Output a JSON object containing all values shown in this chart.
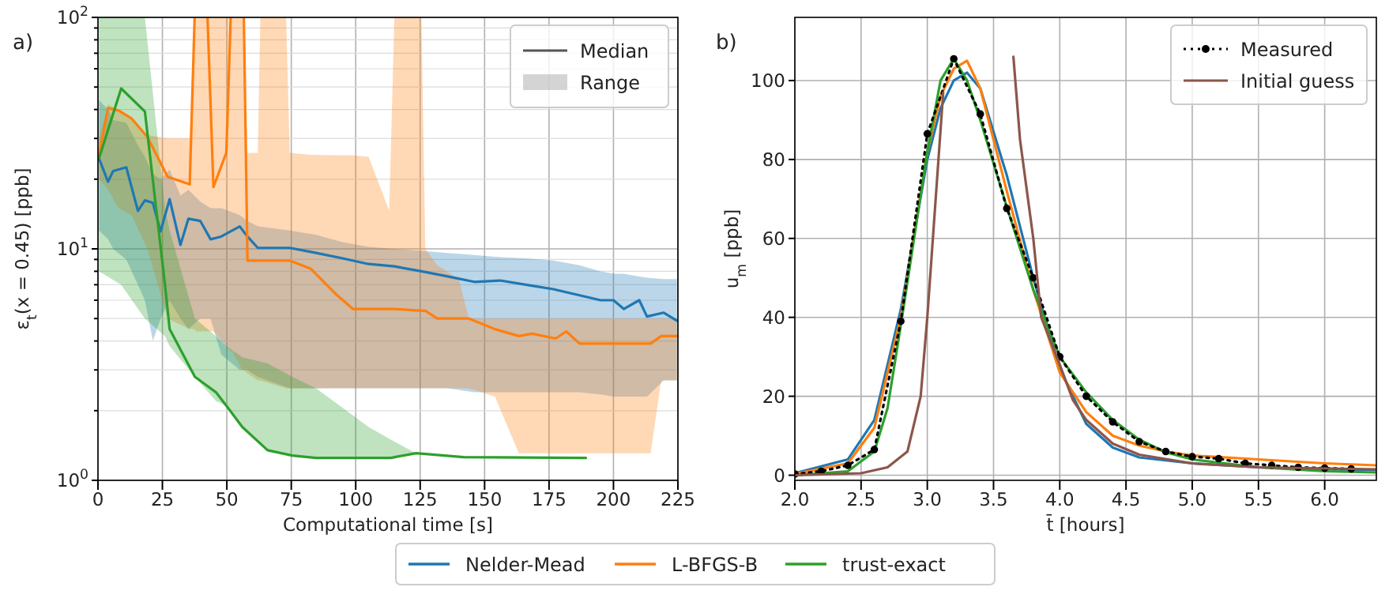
{
  "chart_data": [
    {
      "type": "line",
      "xlabel": "Computational time [s]",
      "ylabel": "ε$_{t}$(x = 0.45) [ppb]",
      "log": "y",
      "grid": true,
      "legend": "bottom",
      "annotations": [
        "a)",
        "Median",
        "Range"
      ],
      "xlim": [
        0,
        225
      ],
      "xticks": [
        0,
        25,
        50,
        75,
        100,
        125,
        150,
        175,
        200,
        225
      ],
      "ylim": [
        1,
        100
      ],
      "yticks": [
        {
          "value": 1,
          "label": "10$^{0}$"
        },
        {
          "value": 2,
          "label": null
        },
        {
          "value": 3,
          "label": null
        },
        {
          "value": 4,
          "label": null
        },
        {
          "value": 5,
          "label": null
        },
        {
          "value": 6,
          "label": null
        },
        {
          "value": 7,
          "label": null
        },
        {
          "value": 8,
          "label": null
        },
        {
          "value": 9,
          "label": null
        },
        {
          "value": 10,
          "label": "10$^{1}$"
        },
        {
          "value": 20,
          "label": null
        },
        {
          "value": 30,
          "label": null
        },
        {
          "value": 40,
          "label": null
        },
        {
          "value": 50,
          "label": null
        },
        {
          "value": 60,
          "label": null
        },
        {
          "value": 70,
          "label": null
        },
        {
          "value": 80,
          "label": null
        },
        {
          "value": 90,
          "label": null
        },
        {
          "value": 100,
          "label": "10$^{2}$"
        }
      ],
      "series": [
        {
          "name": "Nelder-Mead",
          "color": "#1f77b4",
          "x": [
            0.4,
            3.9,
            5.9,
            11,
            15.5,
            18.2,
            21.3,
            24.3,
            27.8,
            32,
            35.1,
            39.7,
            43.7,
            47.8,
            55,
            58,
            62,
            74.4,
            84.6,
            94.9,
            105,
            115,
            125.5,
            135.7,
            146,
            156,
            166,
            176.6,
            186.8,
            195,
            200,
            204,
            210,
            213,
            219.5,
            224.6
          ],
          "values": [
            24.6,
            19.5,
            21.7,
            22.5,
            14.6,
            16.2,
            15.8,
            11.9,
            16.4,
            10.4,
            13.5,
            13.2,
            11,
            11.3,
            12.5,
            11.3,
            10.1,
            10.1,
            9.6,
            9.1,
            8.6,
            8.4,
            8.0,
            7.6,
            7.2,
            7.3,
            7.0,
            6.7,
            6.3,
            6.0,
            6.0,
            5.5,
            6.0,
            5.1,
            5.3,
            4.9
          ],
          "upper": [
            44,
            40,
            36,
            35,
            28,
            25,
            21,
            20,
            22,
            17,
            18,
            16,
            15,
            15,
            14,
            13.2,
            12.5,
            12,
            11.5,
            10.7,
            10.2,
            10,
            9.8,
            9.6,
            9.4,
            9.2,
            9.1,
            8.9,
            8.5,
            8,
            7.8,
            7.8,
            7.6,
            7.5,
            7.4,
            7.4
          ],
          "lower": [
            12,
            11,
            10,
            9,
            7,
            6,
            4,
            5,
            6,
            5,
            4.5,
            5,
            5,
            3.5,
            3,
            3,
            2.8,
            2.5,
            2.5,
            2.5,
            2.5,
            2.5,
            2.5,
            2.5,
            2.4,
            2.4,
            2.4,
            2.4,
            2.4,
            2.35,
            2.3,
            2.3,
            2.3,
            2.3,
            2.7,
            2.7
          ]
        },
        {
          "name": "L-BFGS-B",
          "color": "#ff7f0e",
          "x": [
            0.4,
            3.9,
            8,
            13,
            19.2,
            27,
            35.6,
            37.5,
            38,
            42.5,
            44.8,
            49.8,
            51.5,
            52,
            56,
            56.6,
            58,
            62,
            63,
            73,
            74.4,
            82.6,
            92.8,
            98.9,
            105,
            113,
            115,
            125.5,
            127,
            131.6,
            140,
            143.9,
            154,
            163.3,
            168.4,
            177.6,
            181.7,
            186.8,
            214.4,
            218.5,
            224.6
          ],
          "values": [
            25.4,
            40.6,
            39.6,
            36.6,
            30.4,
            20.5,
            19,
            100,
            null,
            100,
            18.5,
            26,
            100,
            null,
            null,
            100,
            8.9,
            8.9,
            8.9,
            8.9,
            8.9,
            8.2,
            6.3,
            5.5,
            5.5,
            5.5,
            5.5,
            5.4,
            5.4,
            5.0,
            5.0,
            5.0,
            4.5,
            4.2,
            4.3,
            4.1,
            4.4,
            3.9,
            3.9,
            4.2,
            4.2
          ],
          "upper": [
            30,
            42,
            40,
            37,
            31,
            30,
            30,
            100,
            100,
            100,
            100,
            100,
            100,
            100,
            100,
            100,
            26,
            26,
            100,
            100,
            26,
            25.5,
            25.4,
            25.4,
            25,
            14.6,
            100,
            100,
            10,
            8.5,
            7.4,
            5,
            5,
            5,
            5,
            5,
            5,
            5,
            5,
            5,
            5
          ],
          "lower": [
            20,
            18,
            15,
            14,
            10,
            5,
            4.5,
            4.5,
            4.4,
            4.4,
            4.4,
            3.8,
            3.6,
            3.6,
            3,
            3,
            2.9,
            2.7,
            2.7,
            2.5,
            2.5,
            2.5,
            2.5,
            2.5,
            2.5,
            2.5,
            2.5,
            2.5,
            2.5,
            2.5,
            2.5,
            2.5,
            2.3,
            1.31,
            1.31,
            1.31,
            1.31,
            1.31,
            1.31,
            2.7,
            2.7
          ]
        },
        {
          "name": "trust-exact",
          "color": "#2ca02c",
          "x": [
            0.4,
            9,
            18.2,
            26,
            27.8,
            37.6,
            45.8,
            49.8,
            56,
            65.8,
            75.4,
            84.6,
            105,
            113.6,
            123.4,
            141.8,
            189.3
          ],
          "values": [
            24.6,
            49.3,
            39.2,
            7.0,
            4.5,
            2.8,
            2.4,
            2.1,
            1.7,
            1.35,
            1.28,
            1.25,
            1.25,
            1.25,
            1.31,
            1.26,
            1.25
          ],
          "upper": [
            100,
            100,
            100,
            15,
            12,
            5.0,
            4.2,
            3.8,
            3.4,
            3.2,
            2.8,
            2.5,
            1.7,
            1.5,
            1.31,
            1.26,
            1.25
          ],
          "lower": [
            8,
            7,
            5,
            4.2,
            3.8,
            2.8,
            2.2,
            2.1,
            1.7,
            1.35,
            1.28,
            1.25,
            1.25,
            1.25,
            1.31,
            1.26,
            1.25
          ]
        }
      ]
    },
    {
      "type": "line",
      "xlabel": "t̄ [hours]",
      "ylabel": "u$_{m}$ [ppb]",
      "grid": true,
      "legend": "top right",
      "annotations": [
        "b)"
      ],
      "xlim": [
        2,
        6.39
      ],
      "xticks": [
        {
          "value": 2,
          "label": "2.0"
        },
        2.5,
        {
          "value": 3,
          "label": "3.0"
        },
        3.5,
        {
          "value": 4,
          "label": "4.0"
        },
        4.5,
        {
          "value": 5,
          "label": "5.0"
        },
        5.5,
        {
          "value": 6,
          "label": "6.0"
        }
      ],
      "ylim": [
        -1.3,
        116
      ],
      "yticks": [
        0,
        20,
        40,
        60,
        80,
        100
      ],
      "series": [
        {
          "color": "#1f77b4",
          "x": [
            2.0,
            2.4,
            2.6,
            2.8,
            3.0,
            3.1,
            3.2,
            3.3,
            3.4,
            3.6,
            3.8,
            4.0,
            4.2,
            4.4,
            4.6,
            5.0,
            5.5,
            6.0,
            6.39
          ],
          "values": [
            0.5,
            4,
            14,
            42,
            80,
            93,
            100,
            102,
            98,
            76,
            50,
            27,
            13,
            7,
            4.5,
            3,
            2,
            1.5,
            1.3
          ]
        },
        {
          "color": "#ff7f0e",
          "x": [
            2.0,
            2.4,
            2.6,
            2.8,
            3.0,
            3.1,
            3.2,
            3.3,
            3.4,
            3.6,
            3.8,
            4.0,
            4.2,
            4.4,
            4.6,
            4.8,
            5.0,
            5.5,
            6.0,
            6.39
          ],
          "values": [
            0.3,
            3,
            12,
            40,
            82,
            96,
            103,
            105,
            98,
            72,
            47,
            26,
            16,
            10,
            7.5,
            6,
            5,
            4,
            3,
            2.5
          ]
        },
        {
          "color": "#2ca02c",
          "x": [
            2.0,
            2.4,
            2.6,
            2.7,
            2.8,
            2.9,
            3.0,
            3.1,
            3.2,
            3.3,
            3.4,
            3.6,
            3.8,
            4.0,
            4.2,
            4.4,
            4.6,
            4.8,
            5.0,
            5.5,
            6.0,
            6.39
          ],
          "values": [
            0,
            1,
            6,
            17,
            38,
            60,
            82,
            100,
            105.5,
            100,
            90,
            68,
            47,
            30,
            21,
            14,
            9,
            5.8,
            4,
            2,
            1,
            0.7
          ]
        },
        {
          "name": "Measured",
          "color": "#000000",
          "line_style": "dotted",
          "marker": "circle",
          "x": [
            2.0,
            2.2,
            2.4,
            2.6,
            2.8,
            3.0,
            3.2,
            3.4,
            3.6,
            3.8,
            4.0,
            4.2,
            4.4,
            4.6,
            4.8,
            5.0,
            5.2,
            5.4,
            5.6,
            5.8,
            6.0,
            6.2
          ],
          "values": [
            0.3,
            1,
            2.5,
            6.5,
            39,
            86.5,
            105.5,
            91.5,
            67.6,
            50,
            30,
            20,
            13.5,
            8.5,
            6,
            4.7,
            4.2,
            3,
            2.5,
            2,
            1.8,
            1.6
          ]
        },
        {
          "name": "Initial guess",
          "color": "#8c564b",
          "x": [
            2.0,
            2.5,
            2.7,
            2.85,
            2.95,
            3.0,
            3.08,
            3.12,
            3.4,
            3.65,
            3.7,
            3.8,
            3.86,
            4.0,
            4.1,
            4.2,
            4.4,
            4.6,
            5.0,
            5.5,
            6.39
          ],
          "values": [
            0,
            0.5,
            2,
            6,
            20,
            40,
            78,
            97,
            null,
            106,
            85,
            60,
            40,
            28,
            19,
            14,
            8,
            5.2,
            3,
            2,
            1.5
          ]
        }
      ]
    }
  ]
}
